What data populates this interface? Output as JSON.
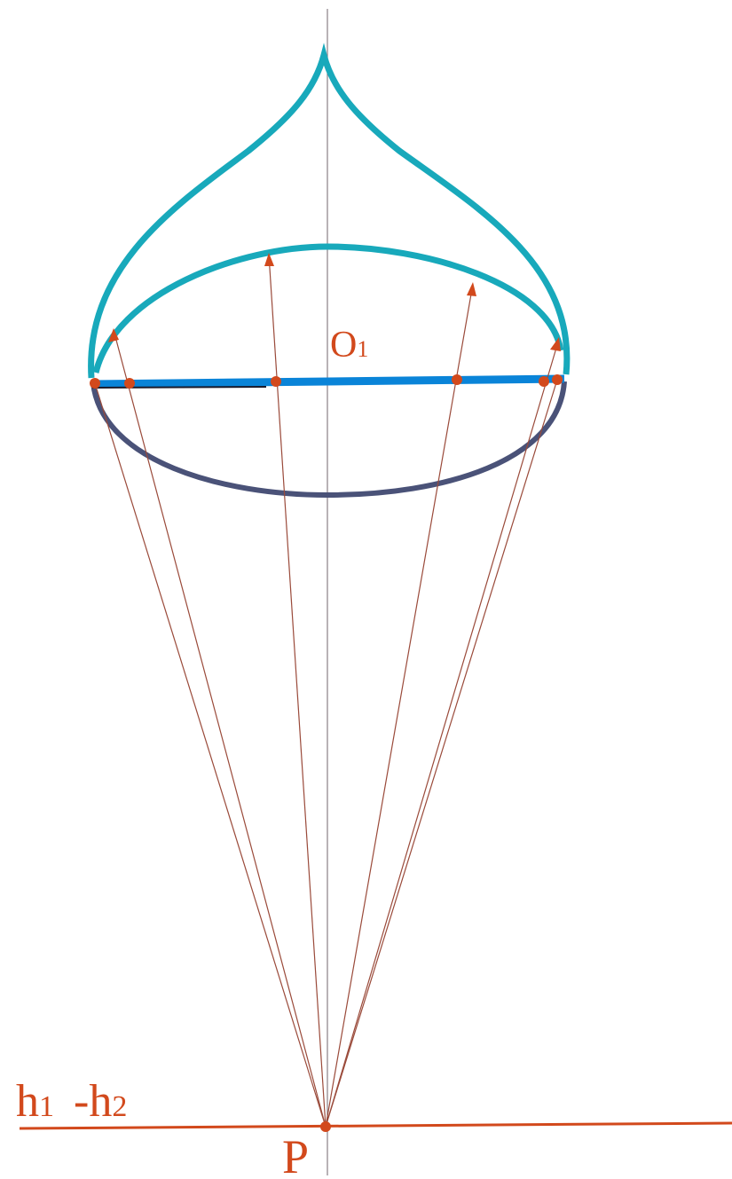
{
  "labels": {
    "center": {
      "letter": "O",
      "index": "1"
    },
    "horizon": {
      "h1": "h",
      "i1": "1",
      "h2": "-h",
      "i2": "2"
    },
    "point": "P"
  }
}
